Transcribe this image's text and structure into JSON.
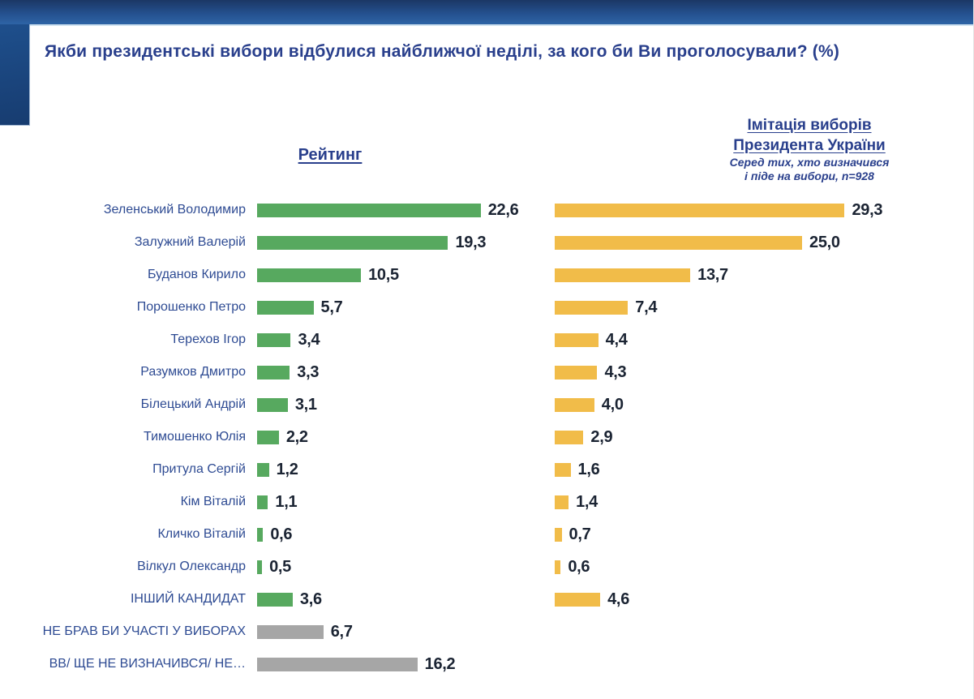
{
  "page": {
    "title": "Якби президентські вибори відбулися найближчої неділі, за кого би Ви проголосували? (%)"
  },
  "headers": {
    "left": "Рейтинг",
    "right_line1": "Імітація виборів",
    "right_line2": "Президента України",
    "subtitle_line1": "Серед тих, хто визначився",
    "subtitle_line2": "і піде на вибори, n=928"
  },
  "colors": {
    "rating_bar": "#57A95F",
    "imitation_bar": "#F1BC49",
    "non_candidate_bar": "#A6A6A6",
    "label_text": "#2E4B93",
    "value_text": "#1B2433",
    "title_text": "#293F8C",
    "top_band_dark": "#1B3765",
    "top_band_light": "#2E64A6"
  },
  "chart_data": {
    "type": "bar",
    "orientation": "horizontal",
    "title": "Якби президентські вибори відбулися найближчої неділі, за кого би Ви проголосували? (%)",
    "xlabel": "",
    "ylabel": "",
    "xlim": [
      0,
      30
    ],
    "grid": false,
    "legend_position": "none",
    "value_decimal_separator": ",",
    "categories": [
      "Зеленський Володимир",
      "Залужний Валерій",
      "Буданов Кирило",
      "Порошенко Петро",
      "Терехов Ігор",
      "Разумков Дмитро",
      "Білецький Андрій",
      "Тимошенко Юлія",
      "Притула Сергій",
      "Кім Віталій",
      "Кличко Віталій",
      "Вілкул Олександр",
      "ІНШИЙ КАНДИДАТ",
      "НЕ БРАВ БИ УЧАСТІ У ВИБОРАХ",
      "ВВ/ ЩЕ НЕ ВИЗНАЧИВСЯ/ НЕ…"
    ],
    "non_candidate_rows": [
      13,
      14
    ],
    "series": [
      {
        "name": "Рейтинг",
        "color": "#57A95F",
        "values": [
          22.6,
          19.3,
          10.5,
          5.7,
          3.4,
          3.3,
          3.1,
          2.2,
          1.2,
          1.1,
          0.6,
          0.5,
          3.6,
          6.7,
          16.2
        ],
        "display": [
          "22,6",
          "19,3",
          "10,5",
          "5,7",
          "3,4",
          "3,3",
          "3,1",
          "2,2",
          "1,2",
          "1,1",
          "0,6",
          "0,5",
          "3,6",
          "6,7",
          "16,2"
        ]
      },
      {
        "name": "Імітація виборів Президента України",
        "subtitle": "Серед тих, хто визначився і піде на вибори, n=928",
        "color": "#F1BC49",
        "values": [
          29.3,
          25.0,
          13.7,
          7.4,
          4.4,
          4.3,
          4.0,
          2.9,
          1.6,
          1.4,
          0.7,
          0.6,
          4.6,
          null,
          null
        ],
        "display": [
          "29,3",
          "25,0",
          "13,7",
          "7,4",
          "4,4",
          "4,3",
          "4,0",
          "2,9",
          "1,6",
          "1,4",
          "0,7",
          "0,6",
          "4,6",
          null,
          null
        ]
      }
    ]
  }
}
